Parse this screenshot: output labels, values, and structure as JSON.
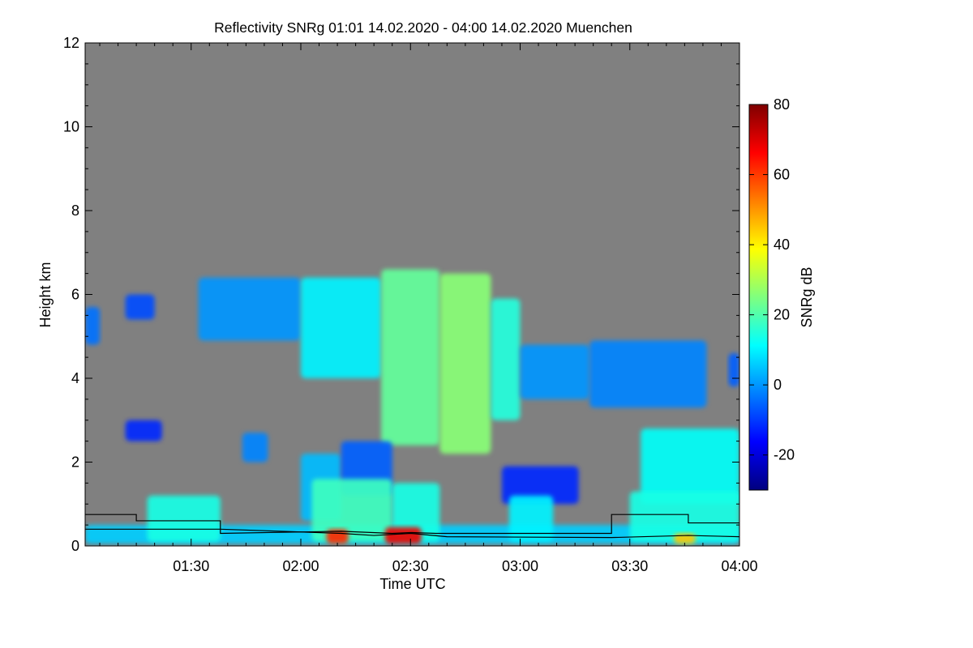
{
  "chart_data": {
    "type": "heatmap",
    "title": "Reflectivity SNRg   01:01 14.02.2020 - 04:00 14.02.2020 Muenchen",
    "xlabel": "Time UTC",
    "ylabel": "Height km",
    "x_unit": "minutes after 01:00 UTC",
    "xlim": [
      61,
      240
    ],
    "ylim": [
      0,
      12
    ],
    "xticks": [
      {
        "value": 90,
        "label": "01:30"
      },
      {
        "value": 120,
        "label": "02:00"
      },
      {
        "value": 150,
        "label": "02:30"
      },
      {
        "value": 180,
        "label": "03:00"
      },
      {
        "value": 210,
        "label": "03:30"
      },
      {
        "value": 240,
        "label": "04:00"
      }
    ],
    "yticks": [
      {
        "value": 0,
        "label": "0"
      },
      {
        "value": 2,
        "label": "2"
      },
      {
        "value": 4,
        "label": "4"
      },
      {
        "value": 6,
        "label": "6"
      },
      {
        "value": 8,
        "label": "8"
      },
      {
        "value": 10,
        "label": "10"
      },
      {
        "value": 12,
        "label": "12"
      }
    ],
    "colorbar": {
      "label": "SNRg dB",
      "range": [
        -30,
        80
      ],
      "ticks": [
        {
          "value": -20,
          "label": "-20"
        },
        {
          "value": 0,
          "label": "0"
        },
        {
          "value": 20,
          "label": "20"
        },
        {
          "value": 40,
          "label": "40"
        },
        {
          "value": 60,
          "label": "60"
        },
        {
          "value": 80,
          "label": "80"
        }
      ],
      "colors": [
        "#00007f",
        "#0000ff",
        "#007fff",
        "#00ffff",
        "#7fff7f",
        "#ffff00",
        "#ff7f00",
        "#ff0000",
        "#7f0000"
      ]
    },
    "no_data_color": "#808080",
    "features": [
      {
        "kind": "cloud",
        "x0": 61,
        "x1": 65,
        "ybot": 4.8,
        "ytop": 5.7,
        "snr": -4
      },
      {
        "kind": "cloud",
        "x0": 72,
        "x1": 80,
        "ybot": 5.4,
        "ytop": 6.0,
        "snr": -8
      },
      {
        "kind": "cloud",
        "x0": 92,
        "x1": 120,
        "ybot": 4.9,
        "ytop": 6.4,
        "snr": 0
      },
      {
        "kind": "cloud",
        "x0": 120,
        "x1": 142,
        "ybot": 4.0,
        "ytop": 6.4,
        "snr": 10
      },
      {
        "kind": "cloud",
        "x0": 142,
        "x1": 158,
        "ybot": 2.4,
        "ytop": 6.6,
        "snr": 22
      },
      {
        "kind": "cloud",
        "x0": 158,
        "x1": 172,
        "ybot": 2.2,
        "ytop": 6.5,
        "snr": 26
      },
      {
        "kind": "cloud",
        "x0": 172,
        "x1": 180,
        "ybot": 3.0,
        "ytop": 5.9,
        "snr": 15
      },
      {
        "kind": "cloud",
        "x0": 180,
        "x1": 199,
        "ybot": 3.5,
        "ytop": 4.8,
        "snr": 0
      },
      {
        "kind": "cloud",
        "x0": 199,
        "x1": 231,
        "ybot": 3.3,
        "ytop": 4.9,
        "snr": -2
      },
      {
        "kind": "cloud",
        "x0": 237,
        "x1": 240,
        "ybot": 3.8,
        "ytop": 4.6,
        "snr": -6
      },
      {
        "kind": "cloud",
        "x0": 72,
        "x1": 82,
        "ybot": 2.5,
        "ytop": 3.0,
        "snr": -12
      },
      {
        "kind": "cloud",
        "x0": 104,
        "x1": 111,
        "ybot": 2.0,
        "ytop": 2.7,
        "snr": -2
      },
      {
        "kind": "cloud",
        "x0": 120,
        "x1": 131,
        "ybot": 0.6,
        "ytop": 2.2,
        "snr": 4
      },
      {
        "kind": "cloud",
        "x0": 131,
        "x1": 145,
        "ybot": 1.2,
        "ytop": 2.5,
        "snr": -6
      },
      {
        "kind": "cloud",
        "x0": 175,
        "x1": 196,
        "ybot": 1.0,
        "ytop": 1.9,
        "snr": -12
      },
      {
        "kind": "cloud",
        "x0": 213,
        "x1": 240,
        "ybot": 1.0,
        "ytop": 2.8,
        "snr": 12
      },
      {
        "kind": "cloud",
        "x0": 61,
        "x1": 240,
        "ybot": 0.05,
        "ytop": 0.5,
        "snr": 6
      },
      {
        "kind": "cloud",
        "x0": 78,
        "x1": 98,
        "ybot": 0.1,
        "ytop": 1.2,
        "snr": 14
      },
      {
        "kind": "cloud",
        "x0": 123,
        "x1": 145,
        "ybot": 0.1,
        "ytop": 1.6,
        "snr": 18
      },
      {
        "kind": "cloud",
        "x0": 145,
        "x1": 158,
        "ybot": 0.1,
        "ytop": 1.5,
        "snr": 14
      },
      {
        "kind": "cloud",
        "x0": 177,
        "x1": 189,
        "ybot": 0.1,
        "ytop": 1.2,
        "snr": 10
      },
      {
        "kind": "cloud",
        "x0": 210,
        "x1": 240,
        "ybot": 0.1,
        "ytop": 1.3,
        "snr": 14
      },
      {
        "kind": "cloud",
        "x0": 127,
        "x1": 133,
        "ybot": 0.05,
        "ytop": 0.4,
        "snr": 62
      },
      {
        "kind": "cloud",
        "x0": 143,
        "x1": 153,
        "ybot": 0.05,
        "ytop": 0.45,
        "snr": 68
      },
      {
        "kind": "cloud",
        "x0": 222,
        "x1": 228,
        "ybot": 0.05,
        "ytop": 0.3,
        "snr": 45
      }
    ],
    "line_series": [
      {
        "x": [
          61,
          75,
          75,
          98,
          98,
          131,
          145,
          150,
          157,
          180,
          205,
          205,
          226,
          226,
          240
        ],
        "y": [
          0.75,
          0.75,
          0.6,
          0.6,
          0.3,
          0.35,
          0.3,
          0.32,
          0.3,
          0.3,
          0.3,
          0.75,
          0.75,
          0.55,
          0.55
        ]
      },
      {
        "x": [
          61,
          98,
          131,
          140,
          150,
          160,
          205,
          226,
          240
        ],
        "y": [
          0.4,
          0.4,
          0.3,
          0.25,
          0.3,
          0.22,
          0.2,
          0.25,
          0.22
        ]
      }
    ]
  }
}
